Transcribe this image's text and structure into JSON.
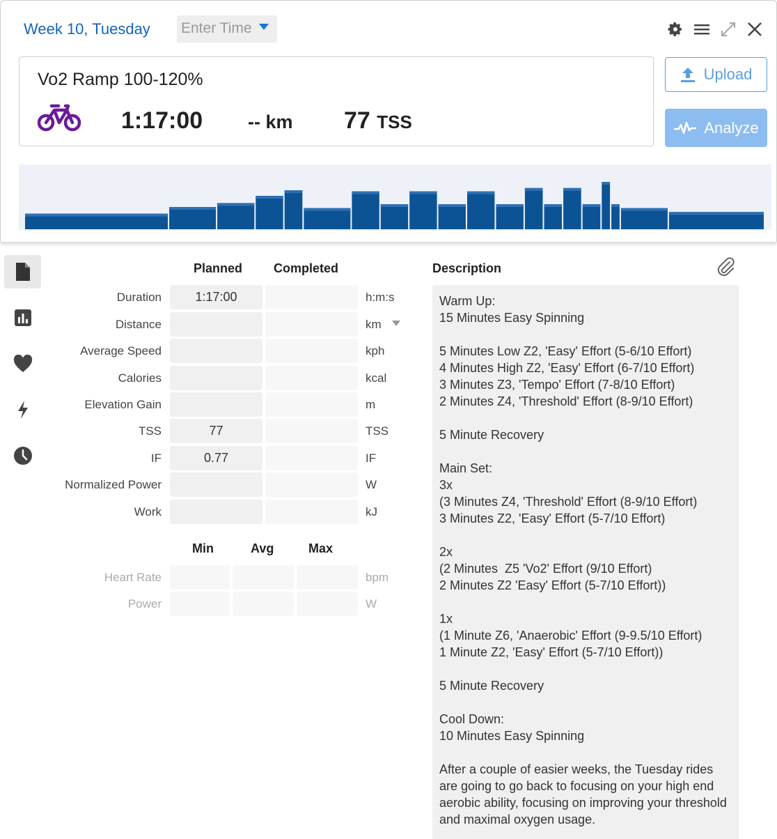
{
  "header": {
    "week_title": "Week 10, Tuesday",
    "time_placeholder": "Enter Time"
  },
  "toolbar": {
    "icons": [
      "gear-icon",
      "menu-icon",
      "expand-icon",
      "close-icon"
    ]
  },
  "summary": {
    "title": "Vo2 Ramp 100-120%",
    "sport_icon": "bike-icon",
    "duration": "1:17:00",
    "distance": "-- km",
    "tss_value": "77",
    "tss_unit": "TSS"
  },
  "actions": {
    "upload_label": "Upload",
    "analyze_label": "Analyze"
  },
  "colors": {
    "accent": "#1565b8",
    "bar_fill": "#0b5394",
    "bar_cap": "#2f6fb4",
    "chart_bg": "#eef2f8",
    "bike": "#6a1b9a"
  },
  "workout_profile": {
    "intensity_pct": [
      {
        "minutes": 15,
        "intensity": 28
      },
      {
        "minutes": 5,
        "intensity": 40
      },
      {
        "minutes": 4,
        "intensity": 47
      },
      {
        "minutes": 3,
        "intensity": 60
      },
      {
        "minutes": 2,
        "intensity": 70
      },
      {
        "minutes": 5,
        "intensity": 38
      },
      {
        "minutes": 3,
        "intensity": 68
      },
      {
        "minutes": 3,
        "intensity": 45
      },
      {
        "minutes": 3,
        "intensity": 68
      },
      {
        "minutes": 3,
        "intensity": 45
      },
      {
        "minutes": 3,
        "intensity": 68
      },
      {
        "minutes": 3,
        "intensity": 45
      },
      {
        "minutes": 2,
        "intensity": 74
      },
      {
        "minutes": 2,
        "intensity": 45
      },
      {
        "minutes": 2,
        "intensity": 74
      },
      {
        "minutes": 2,
        "intensity": 45
      },
      {
        "minutes": 1,
        "intensity": 85
      },
      {
        "minutes": 1,
        "intensity": 45
      },
      {
        "minutes": 5,
        "intensity": 38
      },
      {
        "minutes": 10,
        "intensity": 31
      }
    ]
  },
  "sidebar": {
    "items": [
      {
        "icon": "document-icon",
        "active": true
      },
      {
        "icon": "bar-chart-icon",
        "active": false
      },
      {
        "icon": "heart-icon",
        "active": false
      },
      {
        "icon": "lightning-icon",
        "active": false
      },
      {
        "icon": "clock-icon",
        "active": false
      }
    ]
  },
  "metrics": {
    "planned_header": "Planned",
    "completed_header": "Completed",
    "rows": [
      {
        "label": "Duration",
        "planned": "1:17:00",
        "completed": "",
        "unit": "h:m:s"
      },
      {
        "label": "Distance",
        "planned": "",
        "completed": "",
        "unit": "km"
      },
      {
        "label": "Average Speed",
        "planned": "",
        "completed": "",
        "unit": "kph"
      },
      {
        "label": "Calories",
        "planned": "",
        "completed": "",
        "unit": "kcal"
      },
      {
        "label": "Elevation Gain",
        "planned": "",
        "completed": "",
        "unit": "m"
      },
      {
        "label": "TSS",
        "planned": "77",
        "completed": "",
        "unit": "TSS"
      },
      {
        "label": "IF",
        "planned": "0.77",
        "completed": "",
        "unit": "IF"
      },
      {
        "label": "Normalized Power",
        "planned": "",
        "completed": "",
        "unit": "W"
      },
      {
        "label": "Work",
        "planned": "",
        "completed": "",
        "unit": "kJ"
      }
    ]
  },
  "minmax": {
    "min_header": "Min",
    "avg_header": "Avg",
    "max_header": "Max",
    "rows": [
      {
        "label": "Heart Rate",
        "unit": "bpm"
      },
      {
        "label": "Power",
        "unit": "W"
      }
    ]
  },
  "description": {
    "header": "Description",
    "text": "Warm Up:\n15 Minutes Easy Spinning\n\n5 Minutes Low Z2, 'Easy' Effort (5-6/10 Effort)\n4 Minutes High Z2, 'Easy' Effort (6-7/10 Effort)\n3 Minutes Z3, 'Tempo' Effort (7-8/10 Effort)\n2 Minutes Z4, 'Threshold' Effort (8-9/10 Effort)\n\n5 Minute Recovery\n\nMain Set:\n3x\n(3 Minutes Z4, 'Threshold' Effort (8-9/10 Effort)\n3 Minutes Z2, 'Easy' Effort (5-7/10 Effort)\n\n2x\n(2 Minutes  Z5 'Vo2' Effort (9/10 Effort)\n2 Minutes Z2 'Easy' Effort (5-7/10 Effort))\n\n1x\n(1 Minute Z6, 'Anaerobic' Effort (9-9.5/10 Effort)\n1 Minute Z2, 'Easy' Effort (5-7/10 Effort))\n\n5 Minute Recovery\n\nCool Down:\n10 Minutes Easy Spinning\n\nAfter a couple of easier weeks, the Tuesday rides are going to go back to focusing on your high end aerobic ability, focusing on improving your threshold and maximal oxygen usage."
  }
}
